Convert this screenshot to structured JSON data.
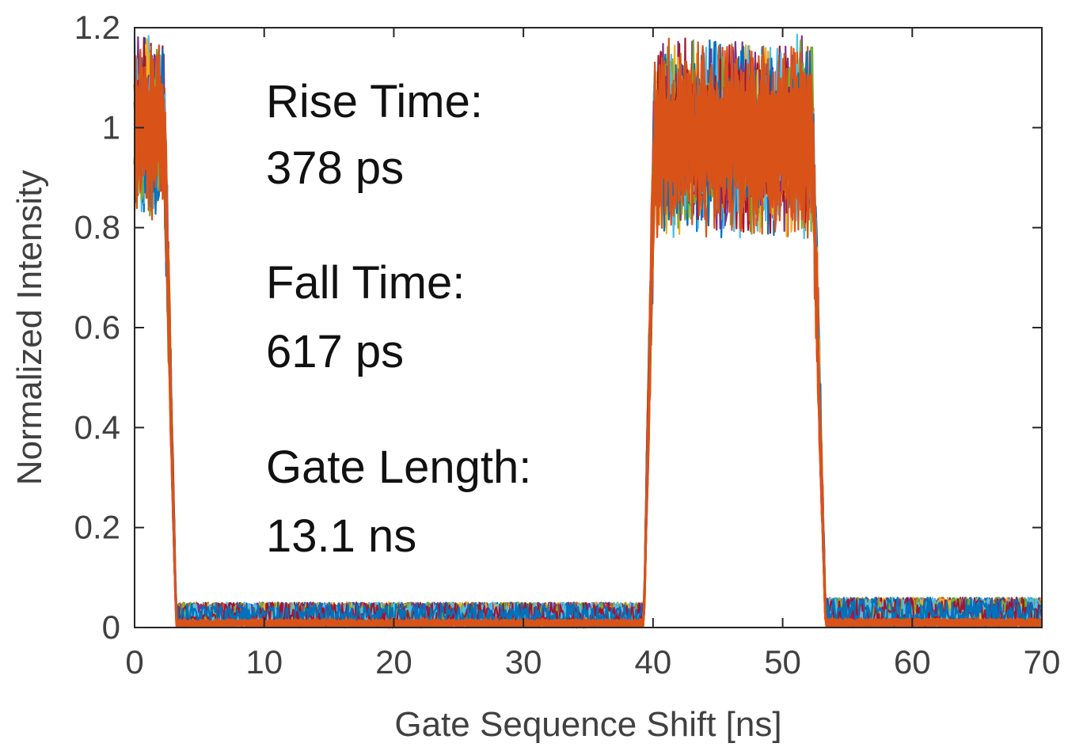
{
  "chart_data": {
    "type": "line",
    "title": "",
    "xlabel": "Gate Sequence Shift [ns]",
    "ylabel": "Normalized Intensity",
    "xlim": [
      0,
      70
    ],
    "ylim": [
      0,
      1.2
    ],
    "xticks": [
      0,
      10,
      20,
      30,
      40,
      50,
      60,
      70
    ],
    "xtick_labels": [
      "0",
      "10",
      "20",
      "30",
      "40",
      "50",
      "60",
      "70"
    ],
    "yticks": [
      0,
      0.2,
      0.4,
      0.6,
      0.8,
      1,
      1.2
    ],
    "ytick_labels": [
      "0",
      "0.2",
      "0.4",
      "0.6",
      "0.8",
      "1",
      "1.2"
    ],
    "grid": false,
    "legend": "none",
    "series_colors": [
      "#0072BD",
      "#D95319",
      "#EDB120",
      "#7E2F8E",
      "#77AC30",
      "#4DBEEE",
      "#A2142F"
    ],
    "envelope": {
      "x": [
        0,
        2.3,
        3.2,
        39.3,
        40.1,
        52.3,
        53.3,
        70
      ],
      "upper": [
        1.2,
        1.2,
        0.05,
        0.05,
        1.2,
        1.2,
        0.06,
        0.06
      ],
      "lower": [
        0.8,
        0.8,
        0.0,
        0.0,
        0.78,
        0.78,
        0.0,
        0.0
      ],
      "mean": [
        1.0,
        1.0,
        0.01,
        0.01,
        0.98,
        0.98,
        0.01,
        0.01
      ]
    },
    "annotations": [
      {
        "label": "Rise Time:",
        "value": "378 ps"
      },
      {
        "label": "Fall Time:",
        "value": "617 ps"
      },
      {
        "label": "Gate Length:",
        "value": "13.1 ns"
      }
    ]
  }
}
